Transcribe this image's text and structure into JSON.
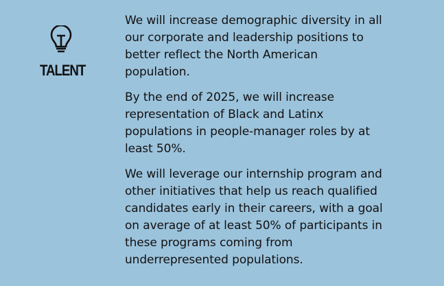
{
  "section": {
    "icon": "lightbulb-icon",
    "heading": "TALENT",
    "background_color": "#9cc3dc"
  },
  "paragraphs": [
    {
      "lines": [
        "We will increase demographic diversity in all",
        "our corporate and leadership positions to",
        "better reflect the North American",
        "population."
      ]
    },
    {
      "lines": [
        "By the end of 2025, we will increase",
        "representation of Black and Latinx",
        "populations in people-manager roles by at",
        "least 50%."
      ]
    },
    {
      "lines": [
        "We will leverage our internship program and",
        "other initiatives that help us reach qualified",
        "candidates early in their careers, with a goal",
        "on average of at least 50% of participants in",
        "these programs coming from",
        "underrepresented populations."
      ]
    }
  ]
}
